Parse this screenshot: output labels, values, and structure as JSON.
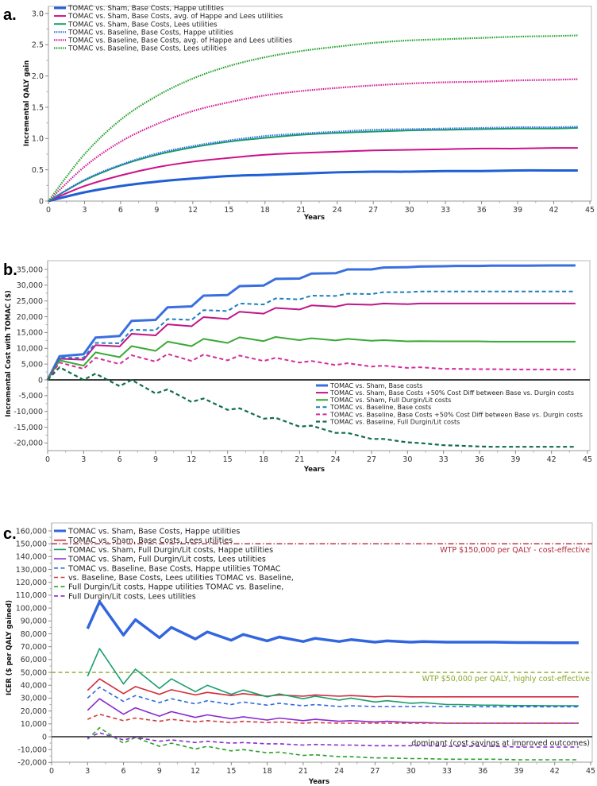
{
  "chart_data": [
    {
      "type": "line",
      "panel_label": "a.",
      "title": "",
      "xlabel": "Years",
      "ylabel": "Incremental QALY gain",
      "xlim": [
        0,
        45
      ],
      "ylim": [
        0,
        3.1
      ],
      "xticks": [
        0,
        3,
        6,
        9,
        12,
        15,
        18,
        21,
        24,
        27,
        30,
        33,
        36,
        39,
        42,
        45
      ],
      "yticks": [
        0,
        0.5,
        1.0,
        1.5,
        2.0,
        2.5,
        3.0
      ],
      "ytick_labels": [
        "0",
        "0.5",
        "1.0",
        "1.5",
        "2.0",
        "2.5",
        "3.0"
      ],
      "grid": false,
      "legend_position": "top-left",
      "x": [
        0,
        3,
        6,
        9,
        12,
        15,
        18,
        21,
        24,
        27,
        30,
        33,
        36,
        39,
        42,
        44
      ],
      "series": [
        {
          "name": "TOMAC vs. Sham, Base Costs, Happe utilities",
          "color": "#1f5fd6",
          "style": "solid",
          "weight": 3,
          "y": [
            0,
            0.14,
            0.24,
            0.31,
            0.36,
            0.4,
            0.42,
            0.44,
            0.46,
            0.47,
            0.47,
            0.48,
            0.48,
            0.49,
            0.49,
            0.49
          ]
        },
        {
          "name": "TOMAC vs. Sham, Base Costs, avg. of Happe and Lees utilities",
          "color": "#cc1188",
          "style": "solid",
          "weight": 2,
          "y": [
            0,
            0.24,
            0.41,
            0.54,
            0.63,
            0.69,
            0.74,
            0.77,
            0.79,
            0.81,
            0.82,
            0.83,
            0.84,
            0.84,
            0.85,
            0.85
          ]
        },
        {
          "name": "TOMAC vs. Sham, Base Costs, Lees utilities",
          "color": "#1a9e6a",
          "style": "solid",
          "weight": 2,
          "y": [
            0,
            0.33,
            0.57,
            0.74,
            0.86,
            0.95,
            1.01,
            1.06,
            1.09,
            1.11,
            1.13,
            1.14,
            1.15,
            1.16,
            1.16,
            1.17
          ]
        },
        {
          "name": "TOMAC vs. Baseline, Base Costs, Happe utilities",
          "color": "#2a6ae0",
          "style": "dotted",
          "weight": 2.2,
          "y": [
            0,
            0.34,
            0.58,
            0.76,
            0.88,
            0.97,
            1.04,
            1.08,
            1.11,
            1.14,
            1.15,
            1.16,
            1.17,
            1.18,
            1.18,
            1.19
          ]
        },
        {
          "name": "TOMAC vs. Baseline, Base Costs, avg. of Happe and Lees utilities",
          "color": "#d01a96",
          "style": "dotted",
          "weight": 2.2,
          "y": [
            0,
            0.55,
            0.95,
            1.23,
            1.44,
            1.58,
            1.69,
            1.76,
            1.81,
            1.85,
            1.88,
            1.9,
            1.91,
            1.93,
            1.94,
            1.95
          ]
        },
        {
          "name": "TOMAC vs. Baseline, Base Costs, Lees utilities",
          "color": "#1fa02a",
          "style": "dotted",
          "weight": 2.2,
          "y": [
            0,
            0.75,
            1.3,
            1.68,
            1.96,
            2.16,
            2.3,
            2.4,
            2.47,
            2.53,
            2.57,
            2.59,
            2.61,
            2.63,
            2.64,
            2.65
          ]
        }
      ],
      "reference_lines": []
    },
    {
      "type": "line",
      "panel_label": "b.",
      "title": "",
      "xlabel": "Years",
      "ylabel": "Incremental Cost with TOMAC ($)",
      "xlim": [
        0,
        45
      ],
      "ylim": [
        -22500,
        37500
      ],
      "xticks": [
        0,
        3,
        6,
        9,
        12,
        15,
        18,
        21,
        24,
        27,
        30,
        33,
        36,
        39,
        42,
        45
      ],
      "yticks": [
        -20000,
        -15000,
        -10000,
        -5000,
        0,
        5000,
        10000,
        15000,
        20000,
        25000,
        30000,
        35000
      ],
      "ytick_labels": [
        "-20,000",
        "-15,000",
        "-10,000",
        "-5,000",
        "0",
        "5,000",
        "10,000",
        "15,000",
        "20,000",
        "25,000",
        "30,000",
        "35,000"
      ],
      "grid": false,
      "legend_position": "lower-right",
      "x": [
        0,
        1,
        3,
        4,
        6,
        7,
        9,
        10,
        12,
        13,
        15,
        16,
        18,
        19,
        21,
        22,
        24,
        25,
        27,
        28,
        30,
        31,
        33,
        34,
        36,
        37,
        39,
        40,
        42,
        44
      ],
      "series": [
        {
          "name": "TOMAC vs. Sham, Base costs",
          "color": "#3a6fe0",
          "style": "solid",
          "weight": 3,
          "y": [
            0,
            7500,
            8100,
            13400,
            13900,
            18700,
            19000,
            23000,
            23300,
            26700,
            26900,
            29700,
            29900,
            32000,
            32100,
            33700,
            33800,
            35000,
            35000,
            35600,
            35700,
            35900,
            36000,
            36100,
            36100,
            36200,
            36200,
            36200,
            36250,
            36250
          ]
        },
        {
          "name": "TOMAC vs. Sham, Base Costs +50% Cost Diff between Base vs. Durgin costs",
          "color": "#c0168a",
          "style": "solid",
          "weight": 2,
          "y": [
            0,
            6700,
            6400,
            11000,
            10600,
            14600,
            14100,
            17600,
            17000,
            19900,
            19300,
            21600,
            21000,
            22800,
            22300,
            23600,
            23200,
            24000,
            23800,
            24200,
            24000,
            24200,
            24200,
            24200,
            24200,
            24200,
            24200,
            24200,
            24200,
            24200
          ]
        },
        {
          "name": "TOMAC vs. Sham, Full Durgin/Lit costs",
          "color": "#3aaa35",
          "style": "solid",
          "weight": 2,
          "y": [
            0,
            6200,
            4500,
            8700,
            7200,
            10700,
            9200,
            12100,
            10700,
            13000,
            11700,
            13500,
            12300,
            13600,
            12600,
            13200,
            12500,
            13000,
            12400,
            12600,
            12200,
            12300,
            12200,
            12200,
            12200,
            12100,
            12100,
            12100,
            12100,
            12100
          ]
        },
        {
          "name": "TOMAC vs. Baseline, Base costs",
          "color": "#1a7fc0",
          "style": "dashed",
          "weight": 2,
          "y": [
            0,
            7000,
            7000,
            11700,
            11600,
            15900,
            15700,
            19300,
            19000,
            22100,
            21800,
            24200,
            23900,
            25800,
            25500,
            26700,
            26600,
            27300,
            27200,
            27800,
            27800,
            28000,
            28000,
            28000,
            28000,
            28000,
            28000,
            28000,
            28000,
            28000
          ]
        },
        {
          "name": "TOMAC vs. Baseline, Base Costs +50% Cost Diff between Base vs. Durgin costs",
          "color": "#d42a9a",
          "style": "dashed",
          "weight": 2,
          "y": [
            0,
            5500,
            3500,
            7000,
            5000,
            7800,
            5800,
            8200,
            6000,
            8000,
            6200,
            7700,
            6000,
            7000,
            5500,
            6000,
            4700,
            5300,
            4200,
            4500,
            3800,
            4000,
            3500,
            3500,
            3400,
            3400,
            3300,
            3300,
            3300,
            3300
          ]
        },
        {
          "name": "TOMAC vs. Baseline, Full Durgin/Lit costs",
          "color": "#0f6e4a",
          "style": "dashed",
          "weight": 2.2,
          "y": [
            0,
            4000,
            0,
            2000,
            -2000,
            0,
            -4300,
            -3000,
            -7000,
            -5900,
            -9500,
            -9000,
            -12300,
            -12000,
            -14800,
            -14500,
            -16800,
            -16800,
            -18700,
            -18700,
            -19800,
            -20000,
            -20700,
            -20800,
            -21100,
            -21200,
            -21200,
            -21200,
            -21200,
            -21200
          ]
        }
      ],
      "reference_lines": [
        {
          "y": 0,
          "label": "",
          "color": "#000000",
          "style": "solid"
        }
      ]
    },
    {
      "type": "line",
      "panel_label": "c.",
      "title": "",
      "xlabel": "Years",
      "ylabel": "ICER ($ per QALY gained)",
      "xlim": [
        0,
        45
      ],
      "ylim": [
        -20000,
        162000
      ],
      "xticks": [
        0,
        3,
        6,
        9,
        12,
        15,
        18,
        21,
        24,
        27,
        30,
        33,
        36,
        39,
        42,
        45
      ],
      "yticks": [
        -20000,
        -10000,
        0,
        10000,
        20000,
        30000,
        40000,
        50000,
        60000,
        70000,
        80000,
        90000,
        100000,
        110000,
        120000,
        130000,
        140000,
        150000,
        160000
      ],
      "ytick_labels": [
        "-20,000",
        "-10,000",
        "0",
        "10,000",
        "20,000",
        "30,000",
        "40,000",
        "50,000",
        "60,000",
        "70,000",
        "80,000",
        "90,000",
        "100,000",
        "110,000",
        "120,000",
        "130,000",
        "140,000",
        "150,000",
        "160,000"
      ],
      "grid": false,
      "legend_position": "top-left",
      "x": [
        3,
        4,
        6,
        7,
        9,
        10,
        12,
        13,
        15,
        16,
        18,
        19,
        21,
        22,
        24,
        25,
        27,
        28,
        30,
        31,
        33,
        34,
        36,
        37,
        39,
        40,
        42,
        44
      ],
      "series": [
        {
          "name": "TOMAC vs. Sham, Base Costs, Happe utilities",
          "color": "#3266e0",
          "style": "solid",
          "weight": 3.5,
          "y": [
            84000,
            105000,
            79000,
            91000,
            77000,
            85000,
            76000,
            81500,
            75000,
            79500,
            74500,
            77500,
            74000,
            76500,
            74000,
            75500,
            73500,
            74500,
            73500,
            74000,
            73500,
            73500,
            73500,
            73500,
            73200,
            73200,
            73000,
            73000
          ]
        },
        {
          "name": "TOMAC vs. Sham, Base Costs, Lees utilities",
          "color": "#d22a3a",
          "style": "solid",
          "weight": 1.6,
          "y": [
            36000,
            45000,
            33500,
            39000,
            33000,
            36500,
            32500,
            34500,
            32000,
            33500,
            31500,
            32500,
            31500,
            32500,
            31500,
            32000,
            31000,
            31500,
            31000,
            31000,
            31000,
            31000,
            31000,
            31000,
            31000,
            31000,
            31000,
            31000
          ]
        },
        {
          "name": "TOMAC vs. Sham, Full Durgin/Lit costs, Happe utilities",
          "color": "#1a9e6a",
          "style": "solid",
          "weight": 1.6,
          "y": [
            47000,
            68500,
            41000,
            52500,
            37500,
            45000,
            35000,
            40000,
            33000,
            36300,
            31000,
            33300,
            29500,
            31500,
            28500,
            30000,
            27000,
            28000,
            26000,
            26500,
            25000,
            25000,
            24500,
            24500,
            24200,
            24200,
            24000,
            24000
          ]
        },
        {
          "name": "TOMAC vs. Sham, Full Durgin/Lit costs, Lees utilities",
          "color": "#8a2ad0",
          "style": "solid",
          "weight": 1.6,
          "y": [
            20500,
            29500,
            17500,
            22500,
            16000,
            19500,
            15000,
            17000,
            14000,
            15500,
            13000,
            14500,
            12500,
            13500,
            12000,
            12500,
            11500,
            12000,
            11000,
            11000,
            10500,
            10500,
            10500,
            10500,
            10500,
            10500,
            10500,
            10500
          ]
        },
        {
          "name": "TOMAC vs. Baseline, Base Costs, Happe utilities TOMAC",
          "color": "#2a6ae0",
          "style": "dashed",
          "weight": 1.6,
          "y": [
            30000,
            38500,
            27500,
            32000,
            26500,
            29500,
            25500,
            28000,
            25000,
            27000,
            24500,
            26000,
            24000,
            25000,
            23500,
            24000,
            23500,
            23500,
            23500,
            23500,
            23500,
            23500,
            23300,
            23300,
            23300,
            23300,
            23300,
            23300
          ]
        },
        {
          "name": "vs. Baseline, Base Costs, Lees utilities TOMAC vs. Baseline,",
          "color": "#d03a3a",
          "style": "dashed",
          "weight": 1.6,
          "y": [
            13500,
            17500,
            12500,
            14500,
            12000,
            13500,
            11500,
            12500,
            11000,
            12000,
            11000,
            11500,
            10500,
            11000,
            10500,
            10500,
            10500,
            10500,
            10500,
            10500,
            10500,
            10500,
            10500,
            10500,
            10500,
            10500,
            10500,
            10500
          ]
        },
        {
          "name": "Full Durgin/Lit costs, Happe utilities TOMAC vs. Baseline,",
          "color": "#2aa02a",
          "style": "dashed",
          "weight": 1.6,
          "y": [
            -2000,
            7000,
            -5000,
            -500,
            -7500,
            -5000,
            -9500,
            -7500,
            -11000,
            -10000,
            -12500,
            -12000,
            -14500,
            -14000,
            -15500,
            -15500,
            -16500,
            -16500,
            -17000,
            -17000,
            -17500,
            -17500,
            -17500,
            -17500,
            -17900,
            -17900,
            -17900,
            -17900
          ]
        },
        {
          "name": "Full Durgin/Lit costs, Lees utilities",
          "color": "#8a2ad0",
          "style": "dashed",
          "weight": 1.6,
          "y": [
            -1000,
            3000,
            -2500,
            -500,
            -3500,
            -2500,
            -4500,
            -3500,
            -5000,
            -4500,
            -5500,
            -5500,
            -6500,
            -6000,
            -6500,
            -6500,
            -7000,
            -7000,
            -7000,
            -7000,
            -7500,
            -7500,
            -7500,
            -7500,
            -8000,
            -8000,
            -8000,
            -8000
          ]
        }
      ],
      "reference_lines": [
        {
          "y": 150000,
          "label": "WTP $150,000 per QALY - cost-effective",
          "color": "#b02a3c",
          "style": "dashdot"
        },
        {
          "y": 50000,
          "label": "WTP $50,000 per QALY, highly cost-effective",
          "color": "#8aa82a",
          "style": "dashed"
        },
        {
          "y": 0,
          "label": "dominant (cost savings at improved outcomes)",
          "color": "#222222",
          "style": "solid"
        }
      ]
    }
  ]
}
